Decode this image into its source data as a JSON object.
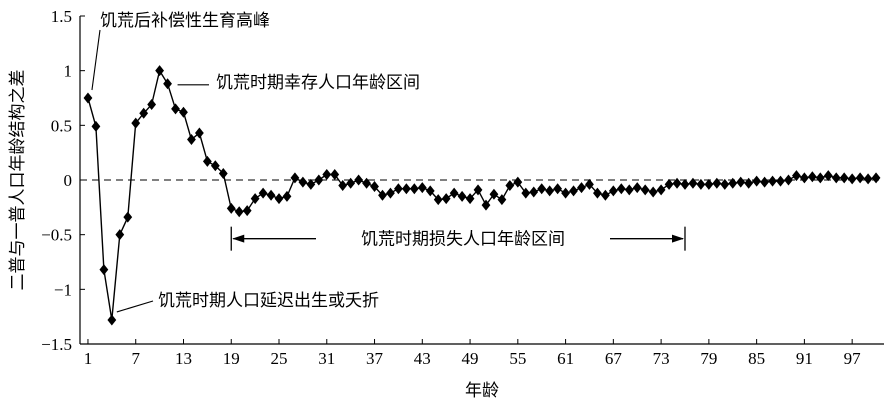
{
  "chart_data": {
    "type": "line",
    "xlabel": "年龄",
    "ylabel": "二普与一普人口年龄结构之差",
    "xlim": [
      1,
      100
    ],
    "ylim": [
      -1.5,
      1.5
    ],
    "xticks": [
      1,
      7,
      13,
      19,
      25,
      31,
      37,
      43,
      49,
      55,
      61,
      67,
      73,
      79,
      85,
      91,
      97
    ],
    "yticks": [
      -1.5,
      -1,
      -0.5,
      0,
      0.5,
      1,
      1.5
    ],
    "ytick_labels": [
      "−1.5",
      "−1",
      "−0.5",
      "0",
      "0.5",
      "1",
      "1.5"
    ],
    "reference_line": 0,
    "marker": "diamond",
    "series": [
      {
        "x": [
          1,
          2,
          3,
          4,
          5,
          6,
          7,
          8,
          9,
          10,
          11,
          12,
          13,
          14,
          15,
          16,
          17,
          18,
          19,
          20,
          21,
          22,
          23,
          24,
          25,
          26,
          27,
          28,
          29,
          30,
          31,
          32,
          33,
          34,
          35,
          36,
          37,
          38,
          39,
          40,
          41,
          42,
          43,
          44,
          45,
          46,
          47,
          48,
          49,
          50,
          51,
          52,
          53,
          54,
          55,
          56,
          57,
          58,
          59,
          60,
          61,
          62,
          63,
          64,
          65,
          66,
          67,
          68,
          69,
          70,
          71,
          72,
          73,
          74,
          75,
          76,
          77,
          78,
          79,
          80,
          81,
          82,
          83,
          84,
          85,
          86,
          87,
          88,
          89,
          90,
          91,
          92,
          93,
          94,
          95,
          96,
          97,
          98,
          99,
          100
        ],
        "values": [
          0.75,
          0.49,
          -0.82,
          -1.28,
          -0.5,
          -0.34,
          0.52,
          0.61,
          0.69,
          1.0,
          0.88,
          0.65,
          0.62,
          0.37,
          0.43,
          0.17,
          0.13,
          0.06,
          -0.26,
          -0.29,
          -0.28,
          -0.17,
          -0.12,
          -0.14,
          -0.17,
          -0.15,
          0.02,
          -0.02,
          -0.04,
          0.0,
          0.05,
          0.05,
          -0.05,
          -0.03,
          0.0,
          -0.03,
          -0.06,
          -0.14,
          -0.12,
          -0.08,
          -0.08,
          -0.08,
          -0.07,
          -0.1,
          -0.18,
          -0.17,
          -0.12,
          -0.15,
          -0.17,
          -0.09,
          -0.23,
          -0.13,
          -0.18,
          -0.05,
          -0.02,
          -0.12,
          -0.11,
          -0.08,
          -0.1,
          -0.08,
          -0.12,
          -0.1,
          -0.07,
          -0.04,
          -0.12,
          -0.14,
          -0.1,
          -0.08,
          -0.09,
          -0.07,
          -0.09,
          -0.11,
          -0.09,
          -0.04,
          -0.03,
          -0.04,
          -0.03,
          -0.04,
          -0.04,
          -0.03,
          -0.04,
          -0.03,
          -0.02,
          -0.03,
          -0.01,
          -0.02,
          -0.01,
          -0.01,
          0.0,
          0.04,
          0.02,
          0.03,
          0.02,
          0.04,
          0.02,
          0.02,
          0.01,
          0.02,
          0.01,
          0.02
        ]
      }
    ],
    "annotations": [
      {
        "text": "饥荒后补偿性生育高峰",
        "x": 1,
        "y": 0.75
      },
      {
        "text": "饥荒时期幸存人口年龄区间",
        "x": 11,
        "y": 0.88
      },
      {
        "text": "饥荒时期人口延迟出生或夭折",
        "x": 4,
        "y": -1.28
      },
      {
        "text": "饥荒时期损失人口年龄区间",
        "range": [
          19,
          76
        ],
        "y": -0.5
      }
    ]
  }
}
